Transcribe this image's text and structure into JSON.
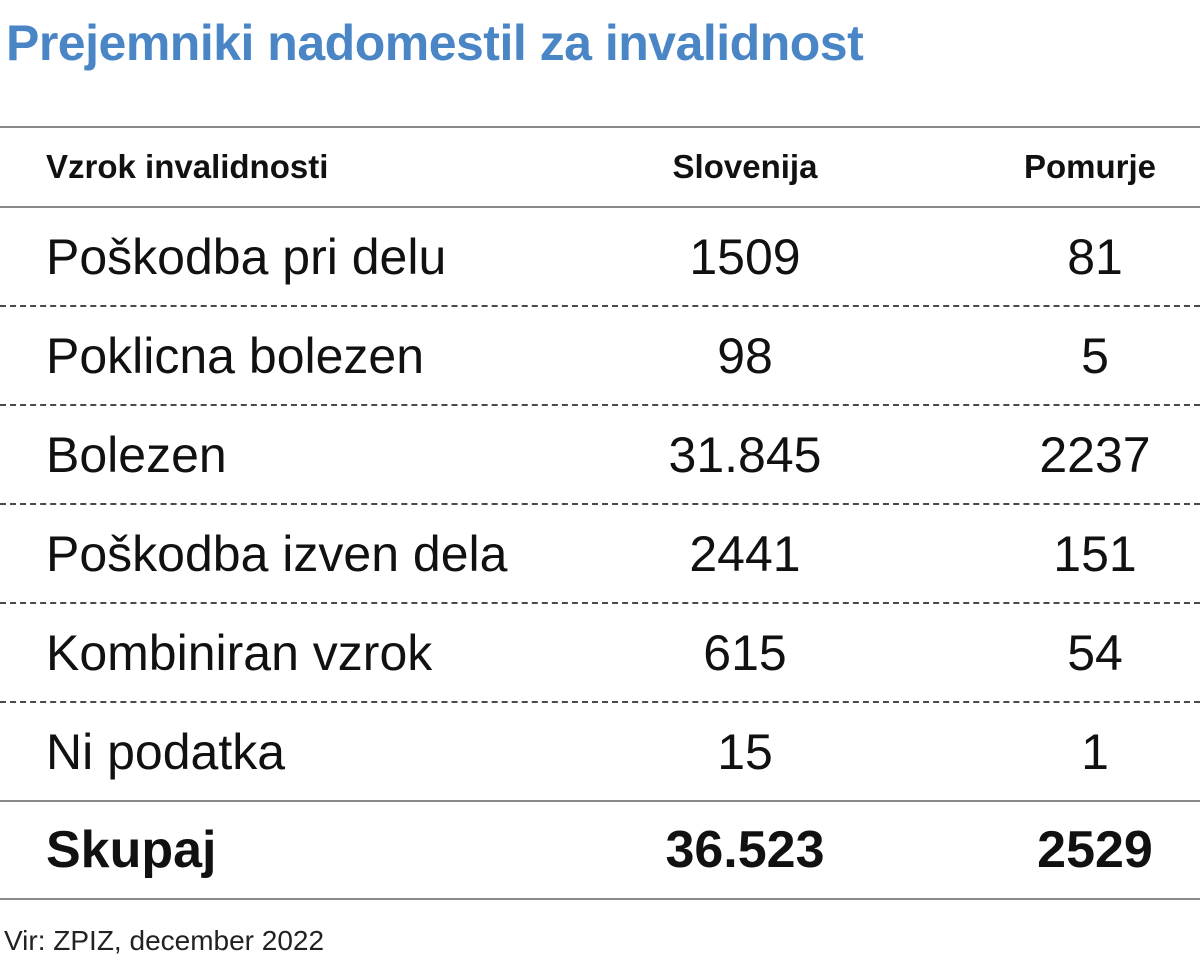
{
  "title": "Prejemniki nadomestil za invalidnost",
  "table": {
    "headers": [
      "Vzrok invalidnosti",
      "Slovenija",
      "Pomurje"
    ],
    "rows": [
      [
        "Poškodba pri delu",
        "1509",
        "81"
      ],
      [
        "Poklicna bolezen",
        "98",
        "5"
      ],
      [
        "Bolezen",
        "31.845",
        "2237"
      ],
      [
        "Poškodba izven dela",
        "2441",
        "151"
      ],
      [
        "Kombiniran vzrok",
        "615",
        "54"
      ],
      [
        "Ni podatka",
        "15",
        "1"
      ]
    ],
    "total": [
      "Skupaj",
      "36.523",
      "2529"
    ]
  },
  "source": "Vir: ZPIZ, december 2022",
  "colors": {
    "title": "#4a86c5",
    "rule": "#8a8a8a"
  }
}
